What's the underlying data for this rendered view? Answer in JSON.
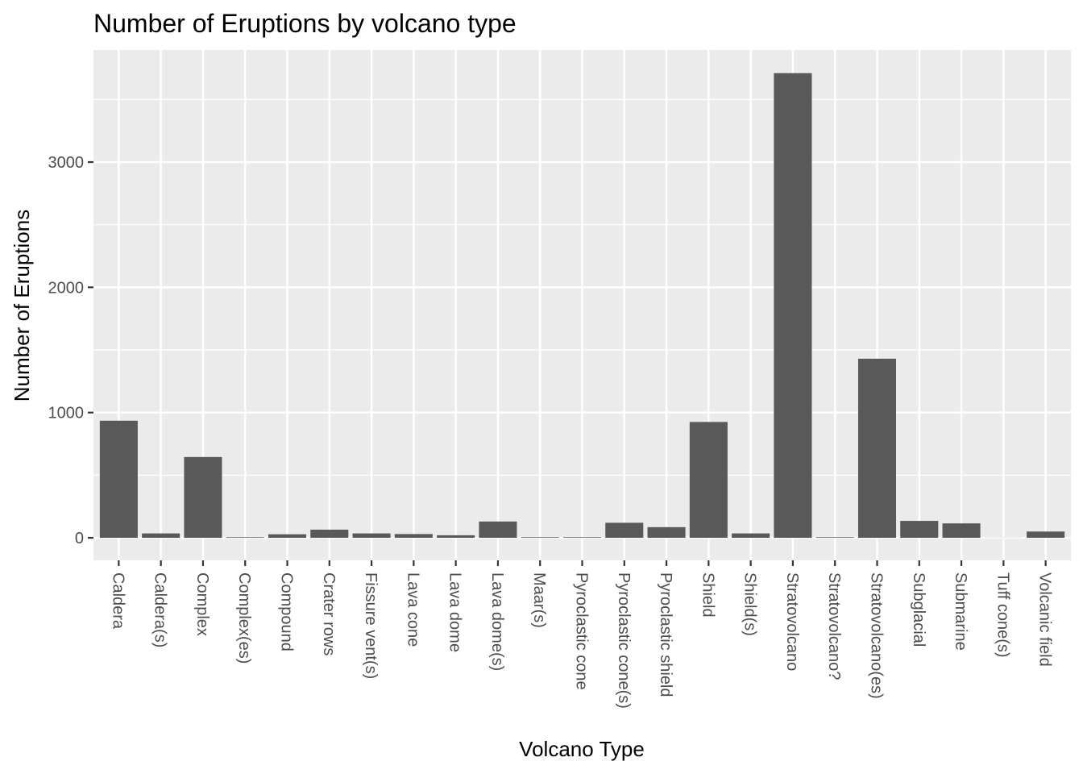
{
  "chart_data": {
    "type": "bar",
    "title": "Number of Eruptions by volcano type",
    "xlabel": "Volcano Type",
    "ylabel": "Number of Eruptions",
    "categories": [
      "Caldera",
      "Caldera(s)",
      "Complex",
      "Complex(es)",
      "Compound",
      "Crater rows",
      "Fissure vent(s)",
      "Lava cone",
      "Lava dome",
      "Lava dome(s)",
      "Maar(s)",
      "Pyroclastic cone",
      "Pyroclastic cone(s)",
      "Pyroclastic shield",
      "Shield",
      "Shield(s)",
      "Stratovolcano",
      "Stratovolcano?",
      "Stratovolcano(es)",
      "Subglacial",
      "Submarine",
      "Tuff cone(s)",
      "Volcanic field"
    ],
    "values": [
      935,
      35,
      645,
      5,
      28,
      65,
      35,
      30,
      20,
      130,
      5,
      5,
      120,
      85,
      925,
      35,
      3710,
      5,
      1430,
      135,
      115,
      1,
      50
    ],
    "ylim": [
      -180,
      3895
    ],
    "yticks": [
      0,
      1000,
      2000,
      3000
    ],
    "ytick_labels": [
      "0",
      "1000",
      "2000",
      "3000"
    ],
    "grid": true,
    "colors": {
      "bar": "#595959",
      "panel": "#ebebeb",
      "grid": "#ffffff",
      "tick": "#333333"
    }
  }
}
